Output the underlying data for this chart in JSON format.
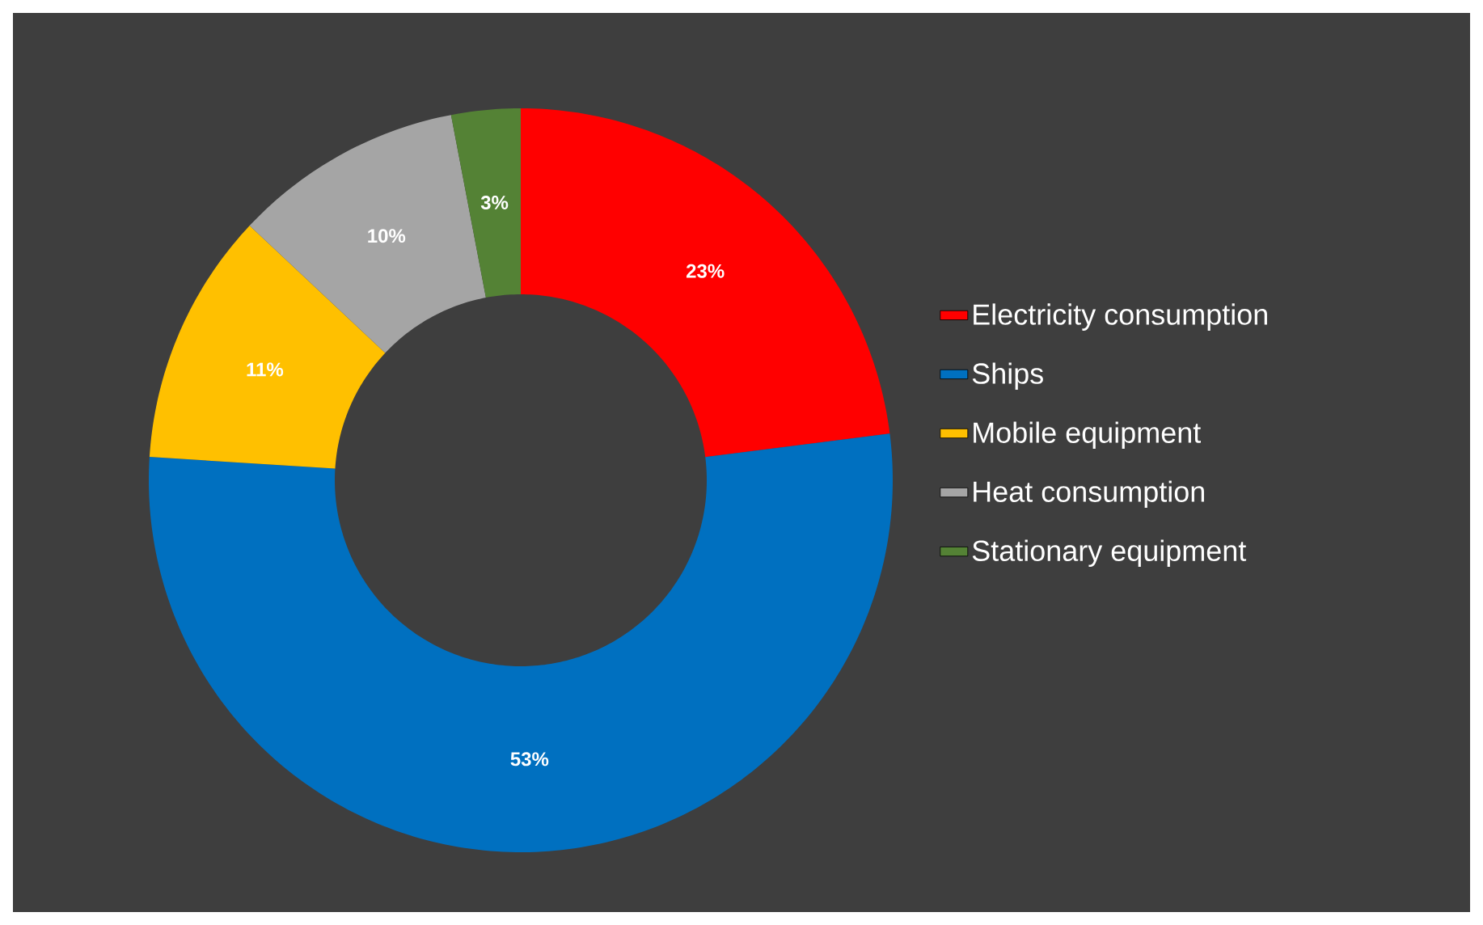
{
  "chart_data": {
    "type": "donut",
    "categories": [
      "Electricity consumption",
      "Ships",
      "Mobile equipment",
      "Heat consumption",
      "Stationary equipment"
    ],
    "values": [
      23,
      53,
      11,
      10,
      3
    ],
    "colors": [
      "#ff0000",
      "#0070c0",
      "#ffc000",
      "#a5a5a5",
      "#548235"
    ],
    "value_labels": [
      "23%",
      "53%",
      "11%",
      "10%",
      "3%"
    ],
    "legend": "right"
  }
}
